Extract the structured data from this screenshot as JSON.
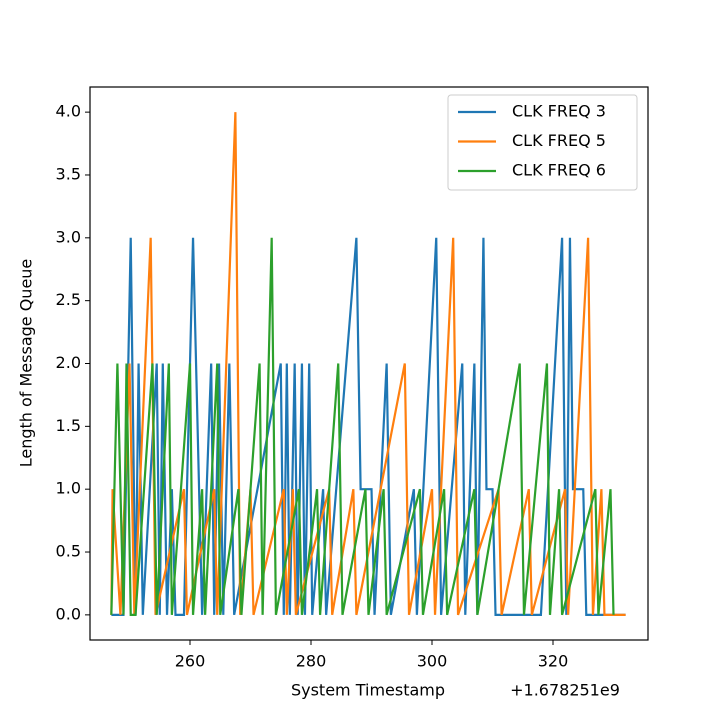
{
  "chart_data": {
    "type": "line",
    "x_label": "System Timestamp",
    "y_label": "Length of Message Queue",
    "x_offset_label": "+1.678251e9",
    "xlim": [
      1678251243.47,
      1678251335.7
    ],
    "ylim": [
      -0.2,
      4.2
    ],
    "xticks": [
      {
        "value": 1678251260,
        "label": "260"
      },
      {
        "value": 1678251280,
        "label": "280"
      },
      {
        "value": 1678251300,
        "label": "300"
      },
      {
        "value": 1678251320,
        "label": "320"
      }
    ],
    "yticks": [
      {
        "value": 0,
        "label": "0.0"
      },
      {
        "value": 0.5,
        "label": "0.5"
      },
      {
        "value": 1,
        "label": "1.0"
      },
      {
        "value": 1.5,
        "label": "1.5"
      },
      {
        "value": 2,
        "label": "2.0"
      },
      {
        "value": 2.5,
        "label": "2.5"
      },
      {
        "value": 3,
        "label": "3.0"
      },
      {
        "value": 3.5,
        "label": "3.5"
      },
      {
        "value": 4,
        "label": "4.0"
      }
    ],
    "grid": false,
    "legend": "upper right",
    "series": [
      {
        "name": "CLK FREQ 3",
        "color": "#1f77b4",
        "x": [
          1678251247,
          1678251249,
          1678251250.2,
          1678251251,
          1678251251.5,
          1678251252.2,
          1678251254.5,
          1678251255,
          1678251255.5,
          1678251256.2,
          1678251257,
          1678251257.6,
          1678251259,
          1678251260.5,
          1678251262,
          1678251263.5,
          1678251264,
          1678251264.8,
          1678251265.5,
          1678251266.5,
          1678251267.3,
          1678251275,
          1678251275.5,
          1678251276,
          1678251276.5,
          1678251277.3,
          1678251277.8,
          1678251278.5,
          1678251279,
          1678251279.7,
          1678251280.2,
          1678251282,
          1678251282.5,
          1678251287.5,
          1678251288.2,
          1678251290,
          1678251290.5,
          1678251292.5,
          1678251293.2,
          1678251297,
          1678251297.5,
          1678251300.7,
          1678251301.5,
          1678251305,
          1678251305.5,
          1678251307,
          1678251307.5,
          1678251308.5,
          1678251309,
          1678251310,
          1678251310.5,
          1678251318,
          1678251321.5,
          1678251322.2,
          1678251322.8,
          1678251323.3,
          1678251325,
          1678251325.5,
          1678251332
        ],
        "values": [
          0,
          0,
          3,
          0,
          2,
          0,
          2,
          0,
          2,
          0,
          1,
          0,
          0,
          3,
          0,
          2,
          0,
          2,
          0,
          2,
          0,
          2,
          0,
          2,
          0,
          2,
          0,
          2,
          0,
          2,
          0,
          1,
          0,
          3,
          1,
          1,
          0,
          2,
          0,
          1,
          0,
          3,
          0,
          2,
          0,
          2,
          0,
          3,
          1,
          1,
          0,
          0,
          3,
          0,
          3,
          1,
          1,
          0,
          0
        ]
      },
      {
        "name": "CLK FREQ 5",
        "color": "#ff7f0e",
        "x": [
          1678251247,
          1678251247.2,
          1678251248.5,
          1678251250,
          1678251250.8,
          1678251253.5,
          1678251254.3,
          1678251259,
          1678251259.5,
          1678251264,
          1678251264.5,
          1678251267.5,
          1678251268.3,
          1678251270,
          1678251270.5,
          1678251275.5,
          1678251276,
          1678251277,
          1678251277.5,
          1678251283,
          1678251283.5,
          1678251287,
          1678251287.5,
          1678251295.5,
          1678251296.2,
          1678251300,
          1678251300.5,
          1678251303.5,
          1678251304.3,
          1678251311,
          1678251311.5,
          1678251316,
          1678251316.5,
          1678251322,
          1678251322.5,
          1678251325.8,
          1678251326.6,
          1678251328,
          1678251328.5,
          1678251332
        ],
        "values": [
          0,
          1,
          0,
          2,
          0,
          3,
          0,
          1,
          0,
          1,
          0,
          4,
          0,
          1,
          0,
          1,
          0,
          1,
          0,
          1,
          0,
          1,
          0,
          2,
          0,
          1,
          0,
          3,
          0,
          1,
          0,
          1,
          0,
          1,
          0,
          3,
          0,
          1,
          0,
          0
        ]
      },
      {
        "name": "CLK FREQ 6",
        "color": "#2ca02c",
        "x": [
          1678251247,
          1678251248,
          1678251249,
          1678251249.5,
          1678251250.2,
          1678251251,
          1678251253.8,
          1678251254.5,
          1678251256.5,
          1678251257,
          1678251260,
          1678251260.5,
          1678251262,
          1678251262.5,
          1678251264.5,
          1678251265,
          1678251268,
          1678251268.5,
          1678251271.5,
          1678251272,
          1678251273.5,
          1678251274.2,
          1678251278,
          1678251278.5,
          1678251281,
          1678251281.5,
          1678251284.5,
          1678251285.2,
          1678251289,
          1678251289.5,
          1678251292,
          1678251292.5,
          1678251298,
          1678251298.5,
          1678251302,
          1678251302.5,
          1678251307,
          1678251307.5,
          1678251314.5,
          1678251315.2,
          1678251319,
          1678251319.5,
          1678251321,
          1678251321.5,
          1678251327,
          1678251327.5,
          1678251329.5,
          1678251330
        ],
        "values": [
          0,
          2,
          0,
          2,
          0,
          0,
          2,
          0,
          2,
          0,
          2,
          0,
          1,
          0,
          2,
          0,
          1,
          0,
          2,
          0,
          3,
          0,
          1,
          0,
          1,
          0,
          2,
          0,
          1,
          0,
          1,
          0,
          1,
          0,
          1,
          0,
          1,
          0,
          2,
          0,
          2,
          0,
          1,
          0,
          1,
          0,
          1,
          0
        ]
      }
    ]
  }
}
